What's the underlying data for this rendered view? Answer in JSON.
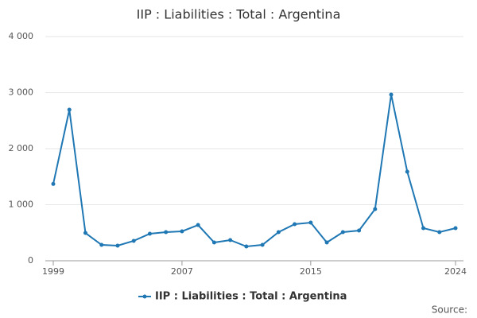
{
  "chart_data": {
    "type": "line",
    "title": "IIP : Liabilities : Total : Argentina",
    "x": [
      1999,
      2000,
      2001,
      2002,
      2003,
      2004,
      2005,
      2006,
      2007,
      2008,
      2009,
      2010,
      2011,
      2012,
      2013,
      2014,
      2015,
      2016,
      2017,
      2018,
      2019,
      2020,
      2021,
      2022,
      2023,
      2024
    ],
    "series": [
      {
        "name": "IIP : Liabilities : Total : Argentina",
        "color": "#1f77b4",
        "values": [
          1370,
          2695,
          496,
          284,
          270,
          355,
          482,
          511,
          525,
          638,
          326,
          369,
          255,
          284,
          511,
          652,
          681,
          326,
          511,
          539,
          922,
          2965,
          1589,
          582,
          511,
          582
        ]
      }
    ],
    "xlim": [
      1999,
      2024
    ],
    "xticks": [
      1999,
      2007,
      2015,
      2024
    ],
    "ylim": [
      0,
      4000
    ],
    "yticks": [
      0,
      {
        "value": 1000,
        "label": "1 000"
      },
      {
        "value": 2000,
        "label": "2 000"
      },
      {
        "value": 3000,
        "label": "3 000"
      },
      {
        "value": 4000,
        "label": "4 000"
      }
    ],
    "grid": true,
    "source_label": "Source:"
  }
}
